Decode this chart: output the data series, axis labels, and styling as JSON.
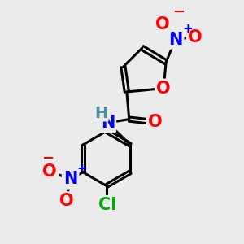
{
  "bg_color": "#ebebeb",
  "bond_color": "#000000",
  "bond_width": 2.2,
  "atom_colors": {
    "O": "#ff0000",
    "N": "#0000ff",
    "Cl": "#00aa00",
    "C": "#000000",
    "H": "#4a8fa0"
  },
  "font_size_atom": 15,
  "font_size_charge": 13
}
